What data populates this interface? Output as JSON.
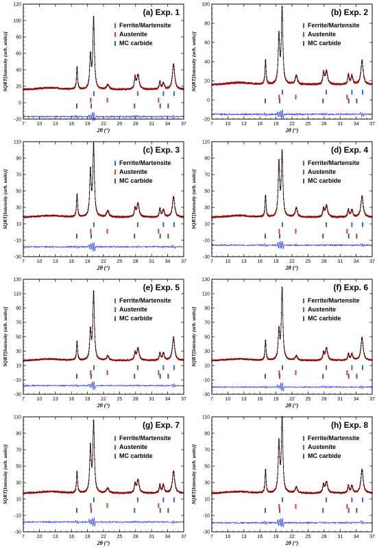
{
  "legend": [
    {
      "label": "Ferrite/Martensite",
      "color": "#3a5fe8"
    },
    {
      "label": "Austenite",
      "color": "#e43a3a"
    },
    {
      "label": "MC carbide",
      "color": "#555555"
    }
  ],
  "colors": {
    "observed": "#d42020",
    "calculated": "#000000",
    "difference": "#2a3ee0",
    "frame": "#000000"
  },
  "chart_data": [
    {
      "type": "line",
      "title": "(a) Exp. 1",
      "xlabel": "2θ (°)",
      "ylabel": "SQRT[Intensity (arb. units)]",
      "xlim": [
        7,
        37
      ],
      "ylim": [
        -20,
        120
      ],
      "xticks": [
        7,
        10,
        13,
        16,
        19,
        22,
        25,
        28,
        31,
        34,
        37
      ],
      "yticks": [
        -20,
        0,
        20,
        40,
        60,
        80,
        100,
        120
      ],
      "baseline": 16,
      "bump": 2,
      "diff_offset": -17,
      "peaks": [
        [
          17.05,
          28,
          0.12
        ],
        [
          19.55,
          40,
          0.16
        ],
        [
          20.15,
          87,
          0.17
        ],
        [
          22.8,
          6,
          0.25
        ],
        [
          27.9,
          14,
          0.15
        ],
        [
          28.45,
          18,
          0.25
        ],
        [
          32.55,
          9,
          0.15
        ],
        [
          33.2,
          8,
          0.2
        ],
        [
          35.1,
          31,
          0.25
        ]
      ],
      "tick_y": {
        "Ferrite/Martensite": 11,
        "Austenite": 3,
        "MC carbide": -4
      },
      "reflections": {
        "Ferrite/Martensite": [
          20.2,
          28.4,
          33.2,
          35.2
        ],
        "Austenite": [
          19.6,
          22.7,
          32.3
        ],
        "MC carbide": [
          17.0,
          19.7,
          27.8,
          32.6,
          34.1
        ]
      }
    },
    {
      "type": "line",
      "title": "(b) Exp. 2",
      "xlabel": "2θ (°)",
      "ylabel": "SQRT[Intensity (arb. units)]",
      "xlim": [
        7,
        37
      ],
      "ylim": [
        -20,
        100
      ],
      "xticks": [
        7,
        10,
        13,
        16,
        19,
        22,
        25,
        28,
        31,
        34,
        37
      ],
      "yticks": [
        -20,
        0,
        20,
        40,
        60,
        80,
        100
      ],
      "baseline": 16,
      "bump": 2,
      "diff_offset": -15,
      "peaks": [
        [
          17.05,
          26,
          0.12
        ],
        [
          19.55,
          50,
          0.16
        ],
        [
          20.15,
          79,
          0.17
        ],
        [
          22.8,
          9,
          0.25
        ],
        [
          27.9,
          12,
          0.15
        ],
        [
          28.45,
          14,
          0.25
        ],
        [
          32.55,
          10,
          0.15
        ],
        [
          33.2,
          9,
          0.2
        ],
        [
          35.1,
          25,
          0.25
        ]
      ],
      "tick_y": {
        "Ferrite/Martensite": 8,
        "Austenite": 3,
        "MC carbide": -1
      },
      "reflections": {
        "Ferrite/Martensite": [
          20.2,
          28.4,
          33.2,
          35.2
        ],
        "Austenite": [
          19.6,
          22.7,
          32.3
        ],
        "MC carbide": [
          17.0,
          19.7,
          27.8,
          32.6,
          34.1
        ]
      }
    },
    {
      "type": "line",
      "title": "(c) Exp. 3",
      "xlabel": "2θ (°)",
      "ylabel": "SQRT[Intensity (arb. units)]",
      "xlim": [
        7,
        37
      ],
      "ylim": [
        -30,
        110
      ],
      "xticks": [
        7,
        10,
        13,
        16,
        19,
        22,
        25,
        28,
        31,
        34,
        37
      ],
      "yticks": [
        -30,
        -10,
        10,
        30,
        50,
        70,
        90,
        110
      ],
      "baseline": 18,
      "bump": 2,
      "diff_offset": -18,
      "peaks": [
        [
          17.05,
          28,
          0.12
        ],
        [
          19.55,
          55,
          0.16
        ],
        [
          20.15,
          88,
          0.17
        ],
        [
          22.8,
          8,
          0.25
        ],
        [
          27.9,
          10,
          0.15
        ],
        [
          28.45,
          17,
          0.25
        ],
        [
          32.55,
          10,
          0.15
        ],
        [
          33.2,
          9,
          0.2
        ],
        [
          35.1,
          25,
          0.25
        ]
      ],
      "tick_y": {
        "Ferrite/Martensite": 9,
        "Austenite": 1,
        "MC carbide": -5
      },
      "reflections": {
        "Ferrite/Martensite": [
          20.2,
          28.4,
          33.2,
          35.2
        ],
        "Austenite": [
          19.6,
          22.7,
          32.3
        ],
        "MC carbide": [
          17.0,
          19.7,
          27.8,
          32.6,
          34.1
        ]
      }
    },
    {
      "type": "line",
      "title": "(d) Exp. 4",
      "xlabel": "2θ (°)",
      "ylabel": "SQRT[Intensity (arb. units)]",
      "xlim": [
        7,
        37
      ],
      "ylim": [
        -30,
        110
      ],
      "xticks": [
        7,
        10,
        13,
        16,
        19,
        22,
        25,
        28,
        31,
        34,
        37
      ],
      "yticks": [
        -30,
        -10,
        10,
        30,
        50,
        70,
        90,
        110
      ],
      "baseline": 18,
      "bump": 2,
      "diff_offset": -16,
      "peaks": [
        [
          17.05,
          27,
          0.12
        ],
        [
          19.55,
          65,
          0.16
        ],
        [
          20.15,
          78,
          0.17
        ],
        [
          22.8,
          11,
          0.25
        ],
        [
          27.9,
          10,
          0.15
        ],
        [
          28.45,
          14,
          0.25
        ],
        [
          32.55,
          9,
          0.15
        ],
        [
          33.2,
          9,
          0.2
        ],
        [
          35.1,
          26,
          0.25
        ]
      ],
      "tick_y": {
        "Ferrite/Martensite": 9,
        "Austenite": 1,
        "MC carbide": -5
      },
      "reflections": {
        "Ferrite/Martensite": [
          20.2,
          28.4,
          33.2,
          35.2
        ],
        "Austenite": [
          19.6,
          22.7,
          32.3
        ],
        "MC carbide": [
          17.0,
          19.7,
          27.8,
          32.6,
          34.1
        ]
      }
    },
    {
      "type": "line",
      "title": "(e) Exp. 5",
      "xlabel": "2θ (°)",
      "ylabel": "SQRT[Intensity (arb. units)]",
      "xlim": [
        7,
        37
      ],
      "ylim": [
        -30,
        130
      ],
      "xticks": [
        7,
        10,
        13,
        16,
        19,
        22,
        25,
        28,
        31,
        34,
        37
      ],
      "yticks": [
        -30,
        -10,
        10,
        30,
        50,
        70,
        90,
        110,
        130
      ],
      "baseline": 17,
      "bump": 2,
      "diff_offset": -18,
      "peaks": [
        [
          17.05,
          27,
          0.12
        ],
        [
          19.55,
          40,
          0.16
        ],
        [
          20.15,
          95,
          0.17
        ],
        [
          22.8,
          6,
          0.25
        ],
        [
          27.9,
          10,
          0.15
        ],
        [
          28.45,
          17,
          0.25
        ],
        [
          32.55,
          10,
          0.15
        ],
        [
          33.2,
          10,
          0.2
        ],
        [
          35.1,
          32,
          0.25
        ]
      ],
      "tick_y": {
        "Ferrite/Martensite": 7,
        "Austenite": 0,
        "MC carbide": -5
      },
      "reflections": {
        "Ferrite/Martensite": [
          20.2,
          28.4,
          33.2,
          35.2
        ],
        "Austenite": [
          19.6,
          22.7,
          32.3
        ],
        "MC carbide": [
          17.0,
          19.7,
          27.8,
          32.6,
          34.1
        ]
      }
    },
    {
      "type": "line",
      "title": "(f) Exp. 6",
      "xlabel": "2θ (°)",
      "ylabel": "SQRT[Intensity (arb. units)]",
      "xlim": [
        7,
        37
      ],
      "ylim": [
        -30,
        130
      ],
      "xticks": [
        7,
        10,
        13,
        16,
        19,
        22,
        25,
        28,
        31,
        34,
        37
      ],
      "yticks": [
        -30,
        -10,
        10,
        30,
        50,
        70,
        90,
        110,
        130
      ],
      "baseline": 17,
      "bump": 2,
      "diff_offset": -20,
      "peaks": [
        [
          17.05,
          28,
          0.12
        ],
        [
          19.55,
          40,
          0.16
        ],
        [
          20.15,
          100,
          0.17
        ],
        [
          22.8,
          6,
          0.25
        ],
        [
          27.9,
          10,
          0.15
        ],
        [
          28.45,
          17,
          0.25
        ],
        [
          32.55,
          9,
          0.15
        ],
        [
          33.2,
          9,
          0.2
        ],
        [
          35.1,
          32,
          0.25
        ]
      ],
      "tick_y": {
        "Ferrite/Martensite": 7,
        "Austenite": 0,
        "MC carbide": -5
      },
      "reflections": {
        "Ferrite/Martensite": [
          20.2,
          28.4,
          33.2,
          35.2
        ],
        "Austenite": [
          19.6,
          22.7,
          32.3
        ],
        "MC carbide": [
          17.0,
          19.7,
          27.8,
          32.6,
          34.1
        ]
      }
    },
    {
      "type": "line",
      "title": "(g) Exp. 7",
      "xlabel": "2θ (°)",
      "ylabel": "SQRT[Intensity (arb. units)]",
      "xlim": [
        7,
        37
      ],
      "ylim": [
        -30,
        110
      ],
      "xticks": [
        7,
        10,
        13,
        16,
        19,
        22,
        25,
        28,
        31,
        34,
        37
      ],
      "yticks": [
        -30,
        -10,
        10,
        30,
        50,
        70,
        90,
        110
      ],
      "baseline": 17,
      "bump": 2,
      "diff_offset": -18,
      "peaks": [
        [
          17.05,
          27,
          0.12
        ],
        [
          19.55,
          55,
          0.16
        ],
        [
          20.15,
          86,
          0.17
        ],
        [
          22.8,
          6,
          0.25
        ],
        [
          27.9,
          11,
          0.15
        ],
        [
          28.45,
          16,
          0.25
        ],
        [
          32.55,
          10,
          0.15
        ],
        [
          33.2,
          10,
          0.2
        ],
        [
          35.1,
          27,
          0.25
        ]
      ],
      "tick_y": {
        "Ferrite/Martensite": 9,
        "Austenite": 2,
        "MC carbide": -4
      },
      "reflections": {
        "Ferrite/Martensite": [
          20.2,
          28.4,
          33.2,
          35.2
        ],
        "Austenite": [
          19.6,
          22.7,
          32.3
        ],
        "MC carbide": [
          17.0,
          19.7,
          27.8,
          32.6,
          34.1
        ]
      }
    },
    {
      "type": "line",
      "title": "(h) Exp. 8",
      "xlabel": "2θ (°)",
      "ylabel": "SQRT[Intensity (arb. units)]",
      "xlim": [
        7,
        37
      ],
      "ylim": [
        -30,
        110
      ],
      "xticks": [
        7,
        10,
        13,
        16,
        19,
        22,
        25,
        28,
        31,
        34,
        37
      ],
      "yticks": [
        -30,
        -10,
        10,
        30,
        50,
        70,
        90,
        110
      ],
      "baseline": 17,
      "bump": 2,
      "diff_offset": -19,
      "peaks": [
        [
          17.05,
          29,
          0.12
        ],
        [
          19.55,
          60,
          0.16
        ],
        [
          20.15,
          90,
          0.17
        ],
        [
          22.8,
          7,
          0.25
        ],
        [
          27.9,
          10,
          0.15
        ],
        [
          28.45,
          14,
          0.25
        ],
        [
          32.55,
          9,
          0.15
        ],
        [
          33.2,
          9,
          0.2
        ],
        [
          35.1,
          29,
          0.25
        ]
      ],
      "tick_y": {
        "Ferrite/Martensite": 9,
        "Austenite": 1,
        "MC carbide": -4
      },
      "reflections": {
        "Ferrite/Martensite": [
          20.2,
          28.4,
          33.2,
          35.2
        ],
        "Austenite": [
          19.6,
          22.7,
          32.3
        ],
        "MC carbide": [
          17.0,
          19.7,
          27.8,
          32.6,
          34.1
        ]
      }
    }
  ]
}
